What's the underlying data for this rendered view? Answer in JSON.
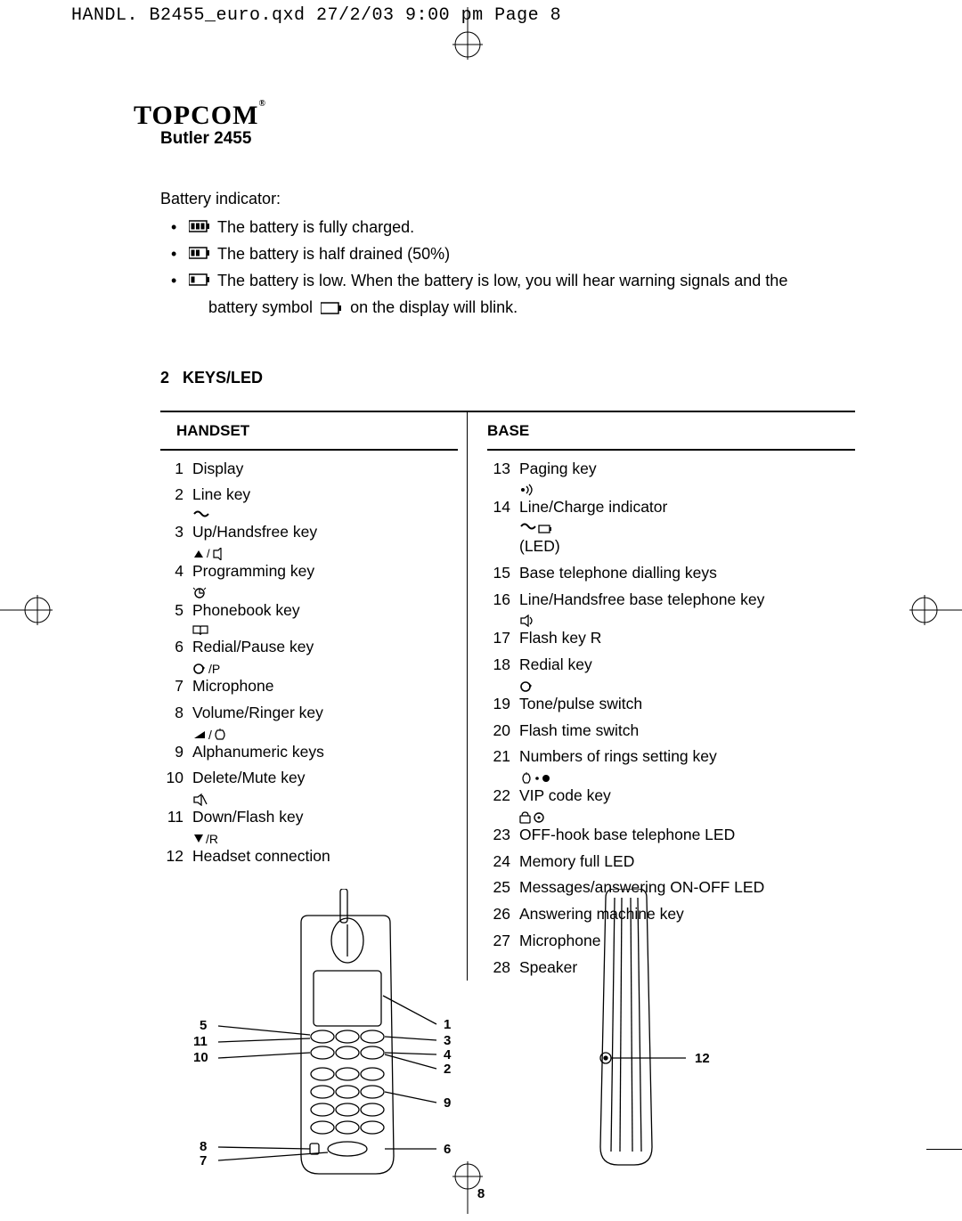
{
  "header": "HANDL. B2455_euro.qxd  27/2/03  9:00 pm  Page 8",
  "logo": {
    "brand": "TOPCOM",
    "model": "Butler 2455",
    "reg": "®"
  },
  "battery": {
    "label": "Battery indicator:",
    "full": "The battery is fully charged.",
    "half": "The battery is half drained (50%)",
    "low_line1": "The battery is low. When the battery is low, you will hear warning signals and the",
    "low_line2_a": "battery symbol",
    "low_line2_b": "on the display will blink."
  },
  "section": {
    "num": "2",
    "title": "KEYS/LED"
  },
  "handset_title": "HANDSET",
  "base_title": "BASE",
  "handset": [
    {
      "n": "1",
      "t": "Display"
    },
    {
      "n": "2",
      "t": "Line key ",
      "sym": "line"
    },
    {
      "n": "3",
      "t": "Up/Handsfree key ",
      "sym": "up_spk"
    },
    {
      "n": "4",
      "t": "Programming key ",
      "sym": "prog"
    },
    {
      "n": "5",
      "t": "Phonebook key ",
      "sym": "book"
    },
    {
      "n": "6",
      "t": "Redial/Pause key ",
      "sym": "redial_p"
    },
    {
      "n": "7",
      "t": "Microphone"
    },
    {
      "n": "8",
      "t": "Volume/Ringer key ",
      "sym": "vol_ring"
    },
    {
      "n": "9",
      "t": "Alphanumeric keys"
    },
    {
      "n": "10",
      "t": "Delete/Mute key ",
      "sym": "mute"
    },
    {
      "n": "11",
      "t": "Down/Flash key ",
      "sym": "down_r"
    },
    {
      "n": "12",
      "t": "Headset connection"
    }
  ],
  "base": [
    {
      "n": "13",
      "t": "Paging key ",
      "sym": "paging"
    },
    {
      "n": "14",
      "t": "Line/Charge indicator ",
      "sym": "line_charge",
      "suffix": " (LED)"
    },
    {
      "n": "15",
      "t": "Base telephone dialling keys"
    },
    {
      "n": "16",
      "t": "Line/Handsfree base telephone key ",
      "sym": "speaker"
    },
    {
      "n": "17",
      "t": "Flash key R"
    },
    {
      "n": "18",
      "t": "Redial key ",
      "sym": "redial"
    },
    {
      "n": "19",
      "t": "Tone/pulse switch"
    },
    {
      "n": "20",
      "t": "Flash time switch"
    },
    {
      "n": "21",
      "t": "Numbers of rings setting key ",
      "sym": "rings"
    },
    {
      "n": "22",
      "t": "VIP code key ",
      "sym": "vip"
    },
    {
      "n": "23",
      "t": "OFF-hook base telephone LED"
    },
    {
      "n": "24",
      "t": "Memory full LED"
    },
    {
      "n": "25",
      "t": "Messages/answering ON-OFF LED"
    },
    {
      "n": "26",
      "t": "Answering machine key"
    },
    {
      "n": "27",
      "t": "Microphone"
    },
    {
      "n": "28",
      "t": "Speaker"
    }
  ],
  "callouts_left": [
    "5",
    "11",
    "10",
    "8",
    "7"
  ],
  "callouts_right_h": [
    "1",
    "3",
    "4",
    "2",
    "9",
    "6"
  ],
  "callout_base": "12",
  "page": "8"
}
